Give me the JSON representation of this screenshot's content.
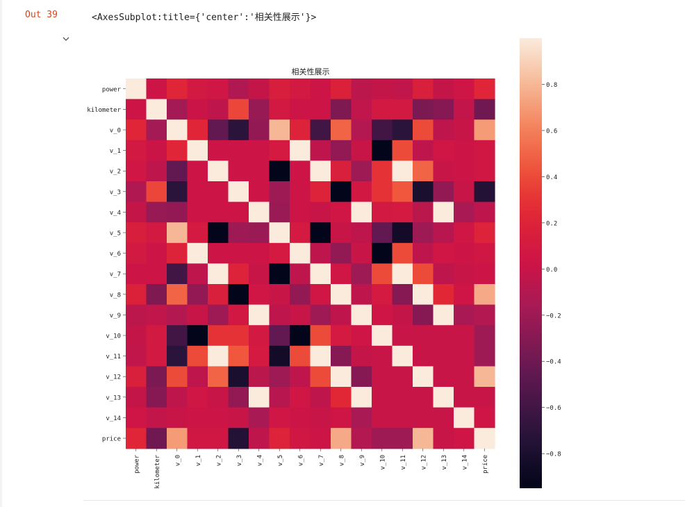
{
  "output": {
    "prompt_label": "Out 39",
    "text": "<AxesSubplot:title={'center':'相关性展示'}>"
  },
  "icons": {
    "collapse": "chevron-down-icon"
  },
  "chart_data": {
    "type": "heatmap",
    "title": "相关性展示",
    "rows": [
      "power",
      "kilometer",
      "v_0",
      "v_1",
      "v_2",
      "v_3",
      "v_4",
      "v_5",
      "v_6",
      "v_7",
      "v_8",
      "v_9",
      "v_10",
      "v_11",
      "v_12",
      "v_13",
      "v_14",
      "price"
    ],
    "cols": [
      "power",
      "kilometer",
      "v_0",
      "v_1",
      "v_2",
      "v_3",
      "v_4",
      "v_5",
      "v_6",
      "v_7",
      "v_8",
      "v_9",
      "v_10",
      "v_11",
      "v_12",
      "v_13",
      "v_14",
      "price"
    ],
    "values": [
      [
        1.0,
        0.02,
        0.22,
        0.08,
        0.05,
        -0.12,
        -0.02,
        0.14,
        0.08,
        0.03,
        0.18,
        -0.06,
        -0.02,
        -0.04,
        0.15,
        -0.02,
        0.04,
        0.22
      ],
      [
        0.02,
        1.0,
        -0.18,
        0.01,
        -0.05,
        0.38,
        -0.23,
        0.08,
        0.02,
        0.03,
        -0.33,
        -0.04,
        0.08,
        0.08,
        -0.35,
        -0.3,
        -0.03,
        -0.39
      ],
      [
        0.22,
        -0.18,
        1.0,
        0.22,
        -0.45,
        -0.7,
        -0.25,
        0.8,
        0.2,
        -0.6,
        0.5,
        -0.1,
        -0.6,
        -0.7,
        0.4,
        -0.05,
        0.0,
        0.7
      ],
      [
        0.08,
        0.01,
        0.22,
        1.0,
        0.02,
        0.02,
        0.03,
        0.1,
        1.0,
        -0.05,
        -0.25,
        0.0,
        -0.95,
        0.4,
        -0.05,
        0.05,
        0.02,
        0.06
      ],
      [
        0.05,
        -0.05,
        -0.45,
        0.02,
        1.0,
        0.02,
        0.03,
        -0.95,
        0.02,
        1.0,
        0.15,
        -0.2,
        0.3,
        1.0,
        0.5,
        0.0,
        0.02,
        0.06
      ],
      [
        -0.12,
        0.38,
        -0.7,
        0.02,
        0.02,
        1.0,
        0.03,
        -0.2,
        0.02,
        0.2,
        -0.95,
        0.07,
        0.3,
        0.45,
        -0.8,
        -0.25,
        0.0,
        -0.75
      ],
      [
        -0.02,
        -0.23,
        -0.25,
        0.03,
        0.03,
        0.03,
        1.0,
        -0.22,
        0.03,
        0.0,
        0.05,
        1.0,
        0.08,
        0.1,
        -0.07,
        1.0,
        -0.15,
        -0.05
      ],
      [
        0.14,
        0.08,
        0.8,
        0.1,
        -0.95,
        -0.2,
        -0.22,
        1.0,
        0.1,
        -0.95,
        0.0,
        -0.05,
        -0.45,
        -0.85,
        -0.2,
        -0.08,
        0.05,
        0.2
      ],
      [
        0.08,
        0.02,
        0.2,
        1.0,
        0.02,
        0.02,
        0.03,
        0.1,
        1.0,
        -0.05,
        -0.25,
        0.0,
        -0.95,
        0.4,
        -0.05,
        0.05,
        0.02,
        0.06
      ],
      [
        0.03,
        0.03,
        -0.6,
        -0.05,
        1.0,
        0.2,
        0.0,
        -0.95,
        -0.05,
        1.0,
        0.05,
        -0.2,
        0.4,
        1.0,
        0.4,
        -0.05,
        0.0,
        0.02
      ],
      [
        0.18,
        -0.33,
        0.5,
        -0.25,
        0.15,
        -0.95,
        0.05,
        0.0,
        -0.25,
        0.05,
        1.0,
        -0.05,
        0.1,
        -0.3,
        1.0,
        0.25,
        0.04,
        0.75
      ],
      [
        -0.06,
        -0.04,
        -0.1,
        0.0,
        -0.2,
        0.07,
        1.0,
        -0.05,
        0.0,
        -0.2,
        -0.05,
        1.0,
        0.04,
        -0.02,
        -0.3,
        1.0,
        -0.15,
        -0.1
      ],
      [
        -0.02,
        0.08,
        -0.6,
        -0.95,
        0.3,
        0.3,
        0.08,
        -0.45,
        -0.95,
        0.4,
        0.1,
        0.04,
        1.0,
        0.0,
        0.0,
        0.0,
        0.0,
        -0.2
      ],
      [
        -0.04,
        0.08,
        -0.7,
        0.4,
        1.0,
        0.45,
        0.1,
        -0.85,
        0.4,
        1.0,
        -0.3,
        -0.02,
        0.0,
        1.0,
        0.0,
        0.0,
        0.0,
        -0.2
      ],
      [
        0.15,
        -0.35,
        0.4,
        -0.05,
        0.5,
        -0.8,
        -0.07,
        -0.2,
        -0.05,
        0.4,
        1.0,
        -0.3,
        0.0,
        0.0,
        1.0,
        0.0,
        0.0,
        0.8
      ],
      [
        -0.02,
        -0.3,
        -0.05,
        0.05,
        0.0,
        -0.25,
        1.0,
        -0.08,
        0.05,
        -0.05,
        0.25,
        1.0,
        0.0,
        0.0,
        0.0,
        1.0,
        0.0,
        0.0
      ],
      [
        0.04,
        -0.03,
        0.0,
        0.02,
        0.02,
        0.0,
        -0.15,
        0.05,
        0.02,
        0.0,
        0.04,
        -0.15,
        0.0,
        0.0,
        0.0,
        0.0,
        1.0,
        0.04
      ],
      [
        0.22,
        -0.39,
        0.7,
        0.06,
        0.06,
        -0.75,
        -0.05,
        0.2,
        0.06,
        0.02,
        0.75,
        -0.1,
        -0.2,
        -0.2,
        0.8,
        0.0,
        0.04,
        1.0
      ]
    ],
    "colorbar": {
      "vmin": -0.95,
      "vmax": 1.0,
      "ticks": [
        0.8,
        0.6,
        0.4,
        0.2,
        0.0,
        -0.2,
        -0.4,
        -0.6,
        -0.8
      ],
      "tick_labels": [
        "0.8",
        "0.6",
        "0.4",
        "0.2",
        "0.0",
        "−0.2",
        "−0.4",
        "−0.6",
        "−0.8"
      ]
    },
    "colormap": "rocket",
    "grid": false
  }
}
